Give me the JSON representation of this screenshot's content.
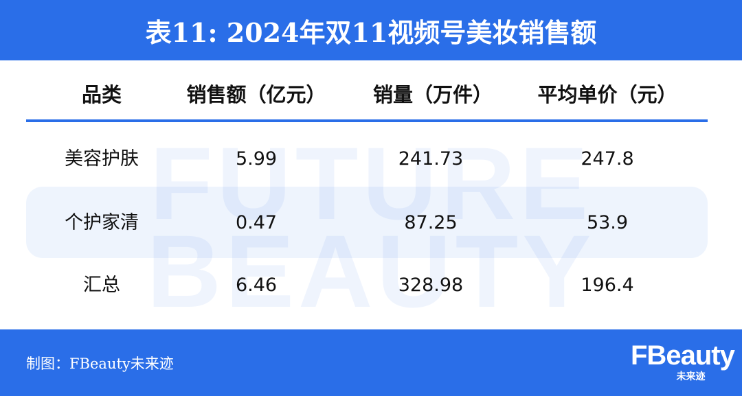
{
  "title": "表11: 2024年双11视频号美妆销售额",
  "watermark": [
    "FUTURE",
    "BEAUTY"
  ],
  "table": {
    "headers": [
      "品类",
      "销售额（亿元）",
      "销量（万件）",
      "平均单价（元）"
    ],
    "rows": [
      [
        "美容护肤",
        "5.99",
        "241.73",
        "247.8"
      ],
      [
        "个护家清",
        "0.47",
        "87.25",
        "53.9"
      ],
      [
        "汇总",
        "6.46",
        "328.98",
        "196.4"
      ]
    ]
  },
  "footer": {
    "source": "制图：FBeauty未来迹",
    "logo_main": "FBeauty",
    "logo_sub": "未来迹"
  },
  "colors": {
    "brand": "#2a6ee8"
  }
}
